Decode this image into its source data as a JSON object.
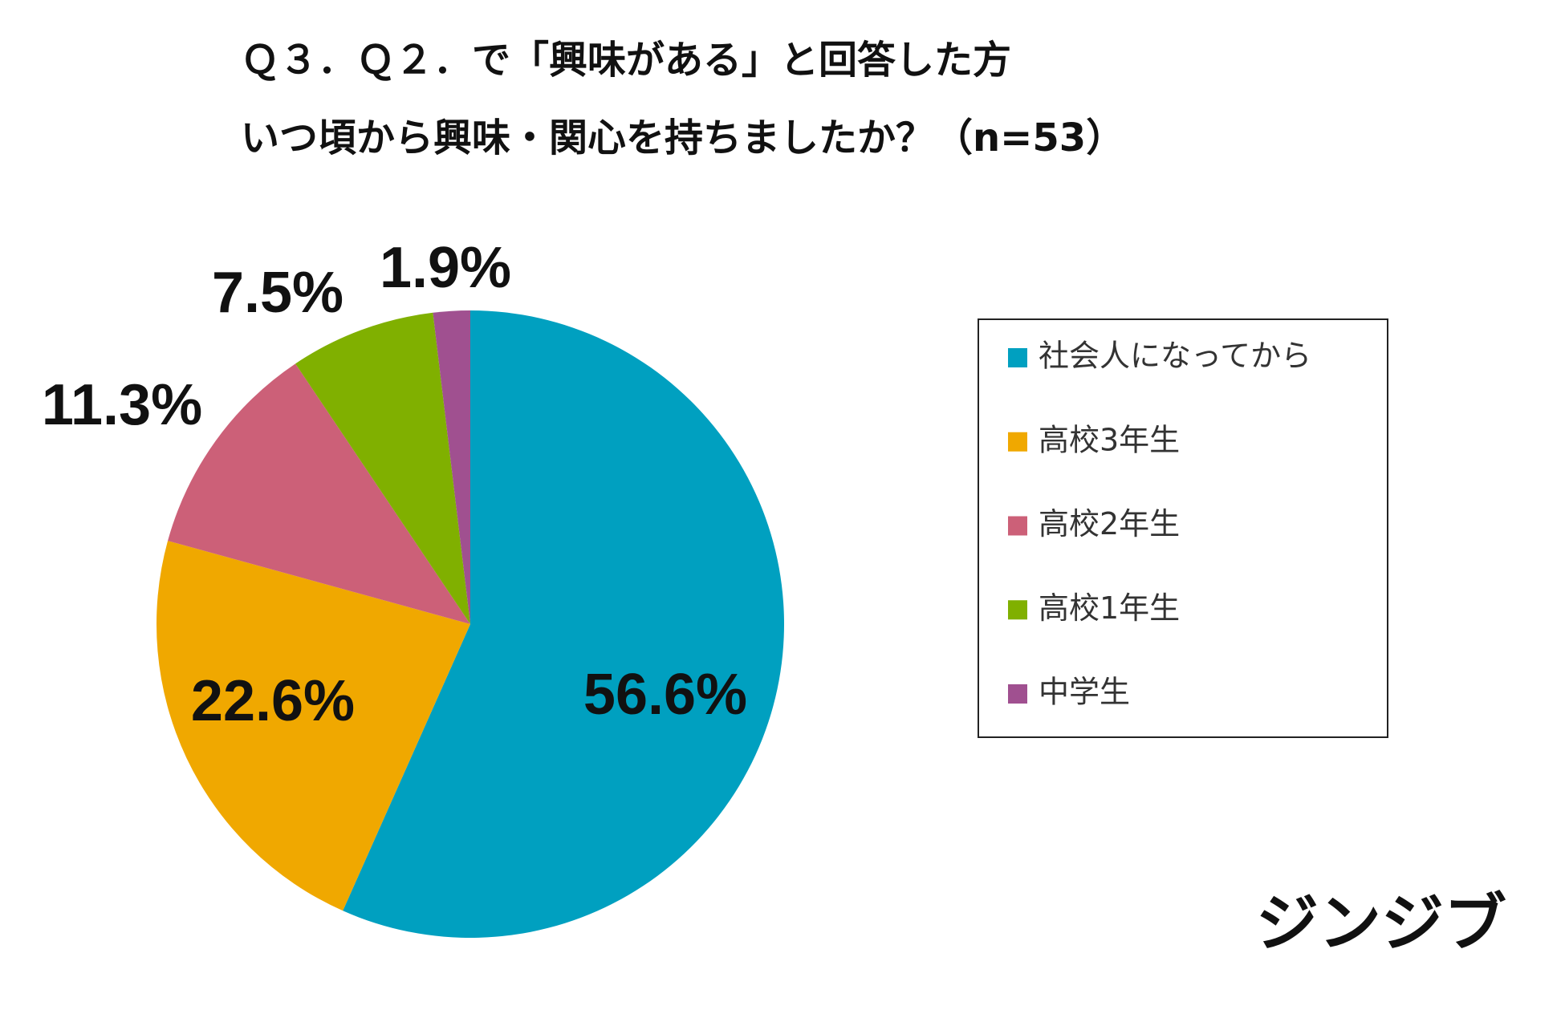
{
  "chart_data": {
    "type": "pie",
    "title": "Ｑ３．Ｑ２．で「興味がある」と回答した方",
    "subtitle": "いつ頃から興味・関心を持ちましたか？（n=53）",
    "series": [
      {
        "name": "社会人になってから",
        "color": "#00a0c0",
        "values": [
          56.6
        ],
        "value_labels": [
          "56.6%"
        ]
      },
      {
        "name": "高校3年生",
        "color": "#f0a800",
        "values": [
          22.6
        ],
        "value_labels": [
          "22.6%"
        ]
      },
      {
        "name": "高校2年生",
        "color": "#cc6078",
        "values": [
          11.3
        ],
        "value_labels": [
          "11.3%"
        ]
      },
      {
        "name": "高校1年生",
        "color": "#80b000",
        "values": [
          7.5
        ],
        "value_labels": [
          "7.5%"
        ]
      },
      {
        "name": "中学生",
        "color": "#a05090",
        "values": [
          1.9
        ],
        "value_labels": [
          "1.9%"
        ]
      }
    ],
    "legend": "right"
  },
  "logo": "ジンジブ"
}
